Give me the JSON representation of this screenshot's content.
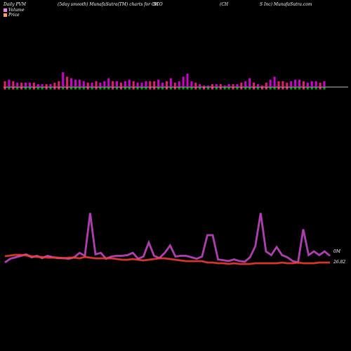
{
  "header": {
    "left": "Daily PVM",
    "smooth": "(5day smooth) MunafaSutra(TM) charts for CH",
    "sym_mid": "SCO",
    "company": "(CH",
    "company2": "S Inc) MunafaSutra.com"
  },
  "legend": {
    "volume_label": "Volume",
    "price_label": "Price",
    "volume_color": "#ee82ee",
    "price_color": "#f4a460"
  },
  "end_labels": {
    "volume": "0M",
    "price": "26.82"
  },
  "colors": {
    "bar_up": "#cc00cc",
    "bar_down": "#e0206a",
    "bar_green": "#00a000",
    "volume_line": "#cc33cc",
    "volume_glow": "#ee82ee",
    "price_line": "#ff2a2a"
  },
  "chart_data": {
    "type": "line",
    "volume_bars": [
      {
        "v": 4,
        "c": "d"
      },
      {
        "v": 5,
        "c": "u"
      },
      {
        "v": 4,
        "c": "d"
      },
      {
        "v": 3,
        "c": "u"
      },
      {
        "v": 3,
        "c": "d"
      },
      {
        "v": 3,
        "c": "u"
      },
      {
        "v": 3,
        "c": "u"
      },
      {
        "v": 3,
        "c": "d"
      },
      {
        "v": 2,
        "c": "u"
      },
      {
        "v": 2,
        "c": "u"
      },
      {
        "v": 2,
        "c": "d"
      },
      {
        "v": 2,
        "c": "u"
      },
      {
        "v": 3,
        "c": "d"
      },
      {
        "v": 4,
        "c": "d"
      },
      {
        "v": 10,
        "c": "u"
      },
      {
        "v": 7,
        "c": "d"
      },
      {
        "v": 6,
        "c": "u"
      },
      {
        "v": 5,
        "c": "u"
      },
      {
        "v": 5,
        "c": "u"
      },
      {
        "v": 4,
        "c": "u"
      },
      {
        "v": 3,
        "c": "d"
      },
      {
        "v": 3,
        "c": "u"
      },
      {
        "v": 4,
        "c": "d"
      },
      {
        "v": 3,
        "c": "u"
      },
      {
        "v": 4,
        "c": "u"
      },
      {
        "v": 6,
        "c": "u"
      },
      {
        "v": 4,
        "c": "d"
      },
      {
        "v": 4,
        "c": "u"
      },
      {
        "v": 3,
        "c": "d"
      },
      {
        "v": 4,
        "c": "u"
      },
      {
        "v": 5,
        "c": "u"
      },
      {
        "v": 4,
        "c": "d"
      },
      {
        "v": 3,
        "c": "u"
      },
      {
        "v": 3,
        "c": "u"
      },
      {
        "v": 4,
        "c": "u"
      },
      {
        "v": 4,
        "c": "d"
      },
      {
        "v": 4,
        "c": "d"
      },
      {
        "v": 5,
        "c": "u"
      },
      {
        "v": 3,
        "c": "u"
      },
      {
        "v": 4,
        "c": "d"
      },
      {
        "v": 6,
        "c": "u"
      },
      {
        "v": 3,
        "c": "d"
      },
      {
        "v": 4,
        "c": "u"
      },
      {
        "v": 7,
        "c": "u"
      },
      {
        "v": 9,
        "c": "u"
      },
      {
        "v": 4,
        "c": "u"
      },
      {
        "v": 3,
        "c": "d"
      },
      {
        "v": 2,
        "c": "u"
      },
      {
        "v": 1,
        "c": "d"
      },
      {
        "v": 1,
        "c": "u"
      },
      {
        "v": 2,
        "c": "d"
      },
      {
        "v": 2,
        "c": "u"
      },
      {
        "v": 2,
        "c": "d"
      },
      {
        "v": 1,
        "c": "u"
      },
      {
        "v": 2,
        "c": "u"
      },
      {
        "v": 2,
        "c": "d"
      },
      {
        "v": 2,
        "c": "u"
      },
      {
        "v": 3,
        "c": "d"
      },
      {
        "v": 4,
        "c": "u"
      },
      {
        "v": 6,
        "c": "u"
      },
      {
        "v": 3,
        "c": "d"
      },
      {
        "v": 2,
        "c": "u"
      },
      {
        "v": 1,
        "c": "d"
      },
      {
        "v": 3,
        "c": "d"
      },
      {
        "v": 5,
        "c": "u"
      },
      {
        "v": 7,
        "c": "u"
      },
      {
        "v": 4,
        "c": "d"
      },
      {
        "v": 4,
        "c": "d"
      },
      {
        "v": 3,
        "c": "d"
      },
      {
        "v": 4,
        "c": "u"
      },
      {
        "v": 5,
        "c": "u"
      },
      {
        "v": 5,
        "c": "u"
      },
      {
        "v": 4,
        "c": "d"
      },
      {
        "v": 3,
        "c": "u"
      },
      {
        "v": 4,
        "c": "u"
      },
      {
        "v": 4,
        "c": "u"
      },
      {
        "v": 3,
        "c": "d"
      },
      {
        "v": 4,
        "c": "u"
      }
    ],
    "volume_line": [
      3,
      8,
      10,
      12,
      14,
      10,
      12,
      9,
      12,
      10,
      9,
      9,
      8,
      10,
      16,
      12,
      70,
      14,
      16,
      8,
      11,
      12,
      12,
      13,
      16,
      8,
      11,
      30,
      12,
      9,
      16,
      26,
      11,
      12,
      12,
      10,
      8,
      11,
      40,
      40,
      7,
      6,
      5,
      7,
      5,
      4,
      10,
      25,
      70,
      18,
      13,
      24,
      13,
      10,
      5,
      3,
      48,
      13,
      18,
      13,
      18,
      12
    ],
    "price_line": [
      7,
      8,
      9,
      9,
      8,
      7,
      6,
      6,
      5,
      5,
      5,
      4,
      5,
      5,
      4,
      6,
      5,
      4,
      4,
      4,
      4,
      3,
      2,
      2,
      3,
      2,
      1,
      2,
      3,
      4,
      4,
      3,
      2,
      1,
      0,
      0,
      0,
      0,
      -2,
      -2,
      -3,
      -3,
      -4,
      -3,
      -4,
      -4,
      -4,
      -3,
      -3,
      -3,
      -3,
      -3,
      -2,
      -3,
      -3,
      -2,
      -3,
      -3,
      -3,
      -2,
      -2,
      -2
    ]
  }
}
